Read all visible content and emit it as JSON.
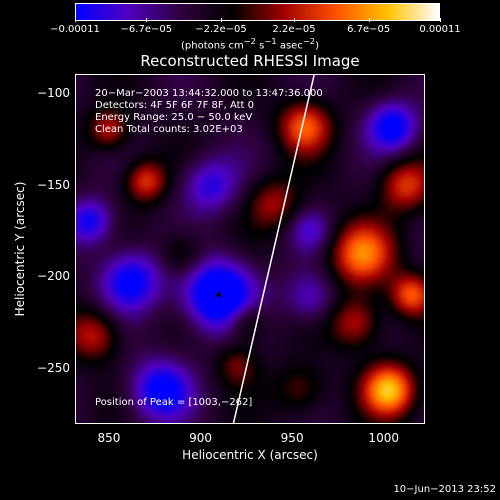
{
  "colorbar": {
    "ticks": [
      "−0.00011",
      "−6.7e−05",
      "−2.2e−05",
      "2.2e−05",
      "6.7e−05",
      "0.00011"
    ],
    "units_prefix": "(photons cm",
    "units_sup1": "−2",
    "units_mid": " s",
    "units_sup2": "−1",
    "units_mid2": " asec",
    "units_sup3": "−2",
    "units_suffix": ")",
    "colors": [
      "#0000ff",
      "#5000c0",
      "#300040",
      "#000000",
      "#a00000",
      "#ff5000",
      "#ffc000",
      "#ffffff"
    ]
  },
  "title": "Reconstructed RHESSI Image",
  "info": {
    "time": "20−Mar−2003 13:44:32.000 to 13:47:36.000",
    "detectors": "Detectors: 4F 5F 6F 7F 8F, Att 0",
    "energy": "Energy Range: 25.0 − 50.0 keV",
    "clean": "Clean    Total counts: 3.02E+03",
    "peak": "Position of Peak = [1003,−262]"
  },
  "chart_data": {
    "type": "heatmap",
    "title": "Reconstructed RHESSI Image",
    "xlabel": "Heliocentric X (arcsec)",
    "ylabel": "Heliocentric Y (arcsec)",
    "xlim": [
      832,
      1022
    ],
    "ylim": [
      -280,
      -90
    ],
    "x_ticks": [
      850,
      900,
      950,
      1000
    ],
    "y_ticks": [
      -100,
      -150,
      -200,
      -250
    ],
    "color_range": [
      -0.00011,
      0.00011
    ],
    "peak_position": [
      1003,
      -262
    ],
    "limb_line": [
      [
        918,
        -280
      ],
      [
        962,
        -90
      ]
    ],
    "hot_spots": [
      {
        "x": 1003,
        "y": -262,
        "v": 0.00011,
        "r": 10
      },
      {
        "x": 988,
        "y": -188,
        "v": 9e-05,
        "r": 12
      },
      {
        "x": 1012,
        "y": -150,
        "v": 7e-05,
        "r": 10
      },
      {
        "x": 957,
        "y": -118,
        "v": 8e-05,
        "r": 10
      },
      {
        "x": 850,
        "y": -120,
        "v": 6e-05,
        "r": 8
      },
      {
        "x": 870,
        "y": -148,
        "v": 7e-05,
        "r": 8
      },
      {
        "x": 940,
        "y": -160,
        "v": 5e-05,
        "r": 10
      },
      {
        "x": 985,
        "y": -225,
        "v": 6e-05,
        "r": 10
      },
      {
        "x": 955,
        "y": -262,
        "v": 4e-05,
        "r": 10
      },
      {
        "x": 920,
        "y": -248,
        "v": 4e-05,
        "r": 8
      },
      {
        "x": 842,
        "y": -232,
        "v": 6e-05,
        "r": 10
      },
      {
        "x": 925,
        "y": -225,
        "v": 5e-05,
        "r": 8
      },
      {
        "x": 1015,
        "y": -210,
        "v": 8e-05,
        "r": 8
      },
      {
        "x": 890,
        "y": -188,
        "v": 4e-05,
        "r": 9
      }
    ],
    "cold_spots": [
      {
        "x": 1005,
        "y": -118,
        "v": -8e-05,
        "r": 10
      },
      {
        "x": 910,
        "y": -210,
        "v": -0.00011,
        "r": 14
      },
      {
        "x": 862,
        "y": -202,
        "v": -8e-05,
        "r": 12
      },
      {
        "x": 878,
        "y": -262,
        "v": -8e-05,
        "r": 12
      },
      {
        "x": 905,
        "y": -150,
        "v": -6e-05,
        "r": 11
      },
      {
        "x": 960,
        "y": -212,
        "v": -5e-05,
        "r": 10
      },
      {
        "x": 840,
        "y": -170,
        "v": -7e-05,
        "r": 9
      },
      {
        "x": 960,
        "y": -175,
        "v": -4e-05,
        "r": 8
      }
    ]
  },
  "footer": "10−Jun−2013 23:52"
}
